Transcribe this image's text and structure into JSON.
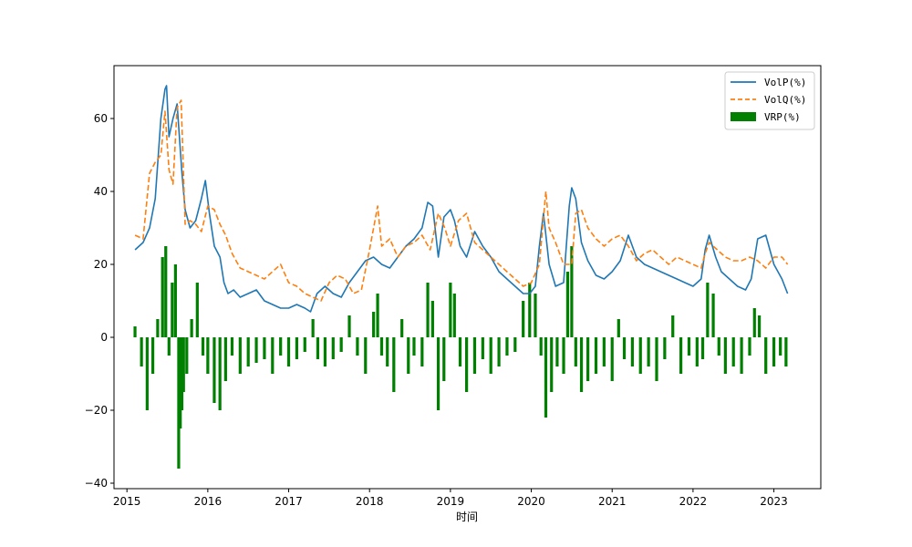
{
  "chart_data": {
    "type": "line",
    "title": "",
    "xlabel": "时间",
    "ylabel": "",
    "xlim": [
      2014.84,
      2023.58
    ],
    "ylim": [
      -41.5,
      74.5
    ],
    "xticks": [
      2015,
      2016,
      2017,
      2018,
      2019,
      2020,
      2021,
      2022,
      2023
    ],
    "yticks": [
      -40,
      -20,
      0,
      20,
      40,
      60
    ],
    "grid": false,
    "legend_position": "upper right",
    "colors": {
      "VolP": "#1f77b4",
      "VolQ": "#ff7f0e",
      "VRP": "#008000"
    },
    "series": [
      {
        "name": "VolP(%)",
        "kind": "line",
        "style": "solid",
        "x": [
          2015.1,
          2015.2,
          2015.28,
          2015.35,
          2015.42,
          2015.47,
          2015.49,
          2015.52,
          2015.57,
          2015.62,
          2015.68,
          2015.72,
          2015.78,
          2015.85,
          2015.92,
          2015.97,
          2016.02,
          2016.08,
          2016.15,
          2016.2,
          2016.25,
          2016.32,
          2016.4,
          2016.5,
          2016.6,
          2016.7,
          2016.8,
          2016.9,
          2017.0,
          2017.1,
          2017.2,
          2017.27,
          2017.35,
          2017.45,
          2017.55,
          2017.65,
          2017.75,
          2017.85,
          2017.95,
          2018.05,
          2018.15,
          2018.25,
          2018.35,
          2018.45,
          2018.55,
          2018.65,
          2018.72,
          2018.78,
          2018.85,
          2018.92,
          2019.0,
          2019.05,
          2019.12,
          2019.2,
          2019.3,
          2019.4,
          2019.5,
          2019.6,
          2019.7,
          2019.8,
          2019.9,
          2019.98,
          2020.05,
          2020.1,
          2020.15,
          2020.22,
          2020.3,
          2020.4,
          2020.47,
          2020.5,
          2020.55,
          2020.62,
          2020.7,
          2020.8,
          2020.9,
          2021.0,
          2021.1,
          2021.2,
          2021.3,
          2021.4,
          2021.5,
          2021.6,
          2021.7,
          2021.8,
          2021.9,
          2022.0,
          2022.1,
          2022.15,
          2022.2,
          2022.28,
          2022.35,
          2022.45,
          2022.55,
          2022.65,
          2022.72,
          2022.8,
          2022.9,
          2023.0,
          2023.1,
          2023.17
        ],
        "values": [
          24,
          26,
          30,
          38,
          60,
          68,
          69,
          55,
          60,
          64,
          45,
          35,
          30,
          32,
          38,
          43,
          34,
          25,
          22,
          15,
          12,
          13,
          11,
          12,
          13,
          10,
          9,
          8,
          8,
          9,
          8,
          7,
          12,
          14,
          12,
          11,
          15,
          18,
          21,
          22,
          20,
          19,
          22,
          25,
          27,
          30,
          37,
          36,
          22,
          33,
          35,
          32,
          25,
          22,
          29,
          25,
          22,
          18,
          16,
          14,
          12,
          12,
          14,
          25,
          34,
          20,
          14,
          15,
          36,
          41,
          38,
          26,
          21,
          17,
          16,
          18,
          21,
          28,
          22,
          20,
          19,
          18,
          17,
          16,
          15,
          14,
          16,
          24,
          28,
          22,
          18,
          16,
          14,
          13,
          16,
          27,
          28,
          20,
          16,
          12
        ]
      },
      {
        "name": "VolQ(%)",
        "kind": "line",
        "style": "dashed",
        "x": [
          2015.1,
          2015.2,
          2015.28,
          2015.35,
          2015.42,
          2015.47,
          2015.52,
          2015.57,
          2015.62,
          2015.67,
          2015.72,
          2015.78,
          2015.85,
          2015.92,
          2016.0,
          2016.08,
          2016.15,
          2016.22,
          2016.3,
          2016.4,
          2016.5,
          2016.6,
          2016.7,
          2016.8,
          2016.9,
          2017.0,
          2017.1,
          2017.2,
          2017.3,
          2017.4,
          2017.5,
          2017.6,
          2017.7,
          2017.8,
          2017.9,
          2018.0,
          2018.1,
          2018.15,
          2018.25,
          2018.35,
          2018.45,
          2018.55,
          2018.65,
          2018.75,
          2018.85,
          2018.93,
          2019.0,
          2019.1,
          2019.2,
          2019.3,
          2019.4,
          2019.5,
          2019.6,
          2019.7,
          2019.8,
          2019.9,
          2020.0,
          2020.1,
          2020.18,
          2020.22,
          2020.3,
          2020.4,
          2020.5,
          2020.55,
          2020.62,
          2020.7,
          2020.8,
          2020.9,
          2021.0,
          2021.1,
          2021.2,
          2021.3,
          2021.4,
          2021.5,
          2021.6,
          2021.7,
          2021.8,
          2021.9,
          2022.0,
          2022.1,
          2022.15,
          2022.2,
          2022.3,
          2022.4,
          2022.5,
          2022.6,
          2022.7,
          2022.8,
          2022.9,
          2023.0,
          2023.1,
          2023.17
        ],
        "values": [
          28,
          27,
          45,
          48,
          50,
          62,
          46,
          42,
          63,
          65,
          31,
          32,
          31,
          29,
          36,
          35,
          31,
          28,
          23,
          19,
          18,
          17,
          16,
          18,
          20,
          15,
          14,
          12,
          11,
          10,
          15,
          17,
          16,
          12,
          13,
          24,
          36,
          25,
          27,
          22,
          25,
          26,
          28,
          24,
          34,
          30,
          25,
          32,
          34,
          26,
          24,
          22,
          20,
          18,
          16,
          14,
          15,
          20,
          40,
          30,
          26,
          20,
          20,
          34,
          35,
          30,
          27,
          25,
          27,
          28,
          25,
          21,
          23,
          24,
          22,
          20,
          22,
          21,
          20,
          19,
          23,
          26,
          24,
          22,
          21,
          21,
          22,
          21,
          19,
          22,
          22,
          20
        ]
      },
      {
        "name": "VRP(%)",
        "kind": "bar",
        "x": [
          2015.1,
          2015.18,
          2015.25,
          2015.32,
          2015.38,
          2015.44,
          2015.48,
          2015.52,
          2015.56,
          2015.6,
          2015.64,
          2015.66,
          2015.68,
          2015.7,
          2015.74,
          2015.8,
          2015.87,
          2015.94,
          2016.0,
          2016.08,
          2016.15,
          2016.22,
          2016.3,
          2016.4,
          2016.5,
          2016.6,
          2016.7,
          2016.8,
          2016.9,
          2017.0,
          2017.1,
          2017.2,
          2017.3,
          2017.36,
          2017.45,
          2017.55,
          2017.65,
          2017.75,
          2017.85,
          2017.95,
          2018.05,
          2018.1,
          2018.15,
          2018.22,
          2018.3,
          2018.4,
          2018.48,
          2018.55,
          2018.65,
          2018.72,
          2018.78,
          2018.85,
          2018.92,
          2019.0,
          2019.05,
          2019.12,
          2019.2,
          2019.3,
          2019.4,
          2019.5,
          2019.6,
          2019.7,
          2019.8,
          2019.9,
          2019.98,
          2020.05,
          2020.12,
          2020.18,
          2020.25,
          2020.32,
          2020.4,
          2020.45,
          2020.5,
          2020.55,
          2020.62,
          2020.7,
          2020.8,
          2020.9,
          2021.0,
          2021.08,
          2021.15,
          2021.25,
          2021.35,
          2021.45,
          2021.55,
          2021.65,
          2021.75,
          2021.85,
          2021.95,
          2022.05,
          2022.12,
          2022.18,
          2022.25,
          2022.32,
          2022.4,
          2022.5,
          2022.6,
          2022.7,
          2022.76,
          2022.82,
          2022.9,
          2023.0,
          2023.08,
          2023.15
        ],
        "values": [
          3,
          -8,
          -20,
          -10,
          5,
          22,
          25,
          -5,
          15,
          20,
          -36,
          -25,
          -20,
          -15,
          -10,
          5,
          15,
          -5,
          -10,
          -18,
          -20,
          -12,
          -5,
          -10,
          -8,
          -7,
          -6,
          -10,
          -5,
          -8,
          -6,
          -4,
          5,
          -6,
          -8,
          -6,
          -4,
          6,
          -5,
          -10,
          7,
          12,
          -5,
          -8,
          -15,
          5,
          -10,
          -5,
          -8,
          15,
          10,
          -20,
          -12,
          15,
          12,
          -8,
          -15,
          -10,
          -6,
          -10,
          -8,
          -5,
          -4,
          10,
          15,
          12,
          -5,
          -22,
          -15,
          -8,
          -10,
          18,
          25,
          -8,
          -15,
          -12,
          -10,
          -8,
          -12,
          5,
          -6,
          -8,
          -10,
          -8,
          -12,
          -6,
          6,
          -10,
          -5,
          -8,
          -6,
          15,
          12,
          -5,
          -10,
          -8,
          -10,
          -5,
          8,
          6,
          -10,
          -8,
          -5,
          -8
        ]
      }
    ]
  }
}
